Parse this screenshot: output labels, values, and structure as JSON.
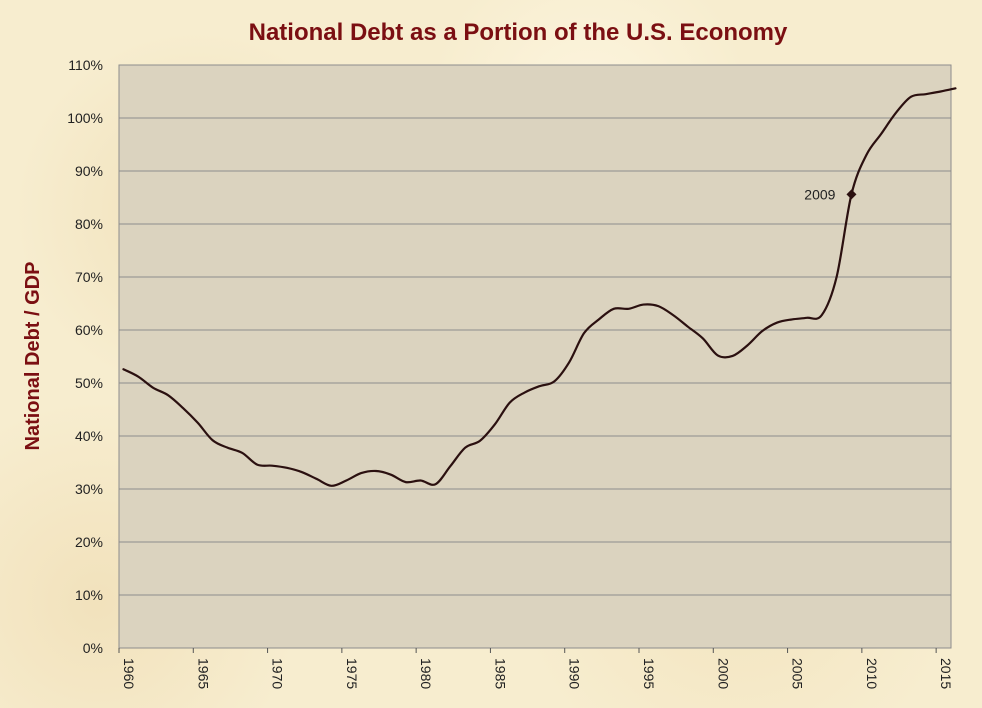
{
  "chart_data": {
    "type": "line",
    "title": "National Debt as a Portion of the U.S. Economy",
    "xlabel": "",
    "ylabel": "National Debt / GDP",
    "xlim": [
      1960,
      2016
    ],
    "ylim": [
      0,
      110
    ],
    "x_ticks": [
      "1960",
      "1965",
      "1970",
      "1975",
      "1980",
      "1985",
      "1990",
      "1995",
      "2000",
      "2005",
      "2010",
      "2015"
    ],
    "y_ticks": [
      "0%",
      "10%",
      "20%",
      "30%",
      "40%",
      "50%",
      "60%",
      "70%",
      "80%",
      "90%",
      "100%",
      "110%"
    ],
    "grid": "horizontal",
    "legend": "none",
    "colors": {
      "plot_bg": "#dbd3bf",
      "line": "#2b1010",
      "title": "#7b0f12",
      "grid": "#8c8c8c"
    },
    "series": [
      {
        "x": [
          1960.3,
          1961.3,
          1962.3,
          1963.3,
          1964.3,
          1965.3,
          1966.3,
          1967.3,
          1968.3,
          1969.3,
          1970.3,
          1971.3,
          1972.3,
          1973.3,
          1974.3,
          1975.3,
          1976.3,
          1977.3,
          1978.3,
          1979.3,
          1980.3,
          1981.3,
          1982.3,
          1983.3,
          1984.3,
          1985.3,
          1986.3,
          1987.3,
          1988.3,
          1989.3,
          1990.3,
          1991.3,
          1992.3,
          1993.3,
          1994.3,
          1995.3,
          1996.3,
          1997.3,
          1998.3,
          1999.3,
          2000.3,
          2001.3,
          2002.3,
          2003.3,
          2004.3,
          2005.3,
          2006.3,
          2007.3,
          2008.3,
          2009.3,
          2010.3,
          2011.3,
          2012.3,
          2013.3,
          2014.3,
          2015.3,
          2016.3
        ],
        "y": [
          52.6,
          51.2,
          49.1,
          47.7,
          45.3,
          42.5,
          39.2,
          37.8,
          36.8,
          34.6,
          34.4,
          34.0,
          33.2,
          31.9,
          30.6,
          31.6,
          33.0,
          33.4,
          32.7,
          31.3,
          31.6,
          30.9,
          34.3,
          37.8,
          39.1,
          42.2,
          46.3,
          48.2,
          49.4,
          50.3,
          53.9,
          59.4,
          62.0,
          64.0,
          64.0,
          64.8,
          64.5,
          62.8,
          60.6,
          58.4,
          55.2,
          55.1,
          57.1,
          59.8,
          61.4,
          62.0,
          62.3,
          62.8,
          70.0,
          85.6,
          93.0,
          97.0,
          101.0,
          104.0,
          104.5,
          105.0,
          105.6
        ]
      }
    ],
    "annotations": [
      {
        "text": "2009",
        "x": 2009.3,
        "y": 85.6
      }
    ]
  }
}
